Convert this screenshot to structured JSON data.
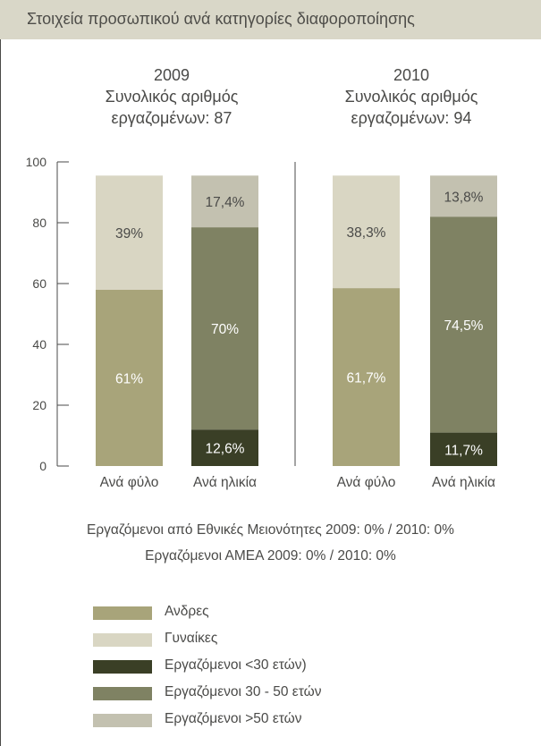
{
  "header": {
    "title": "Στοιχεία προσωπικού ανά κατηγορίες διαφοροποίησης"
  },
  "colors": {
    "men": "#a8a47a",
    "women": "#d9d6c3",
    "under30": "#3a3f26",
    "age30_50": "#7f8263",
    "over50": "#c3c1b0"
  },
  "panels": [
    {
      "year": "2009",
      "line2": "Συνολικός αριθμός",
      "line3": "εργαζομένων: 87"
    },
    {
      "year": "2010",
      "line2": "Συνολικός αριθμός",
      "line3": "εργαζομένων: 94"
    }
  ],
  "chart_data": {
    "type": "bar",
    "stacked": true,
    "ylim": [
      0,
      100
    ],
    "yticks": [
      0,
      20,
      40,
      60,
      80,
      100
    ],
    "groups": [
      {
        "year": "2009",
        "bars": [
          {
            "label": "Ανά φύλο",
            "segments": [
              {
                "series": "Ανδρες",
                "value": 58.0,
                "label": "61%"
              },
              {
                "series": "Γυναίκες",
                "value": 37.5,
                "label": "39%"
              }
            ]
          },
          {
            "label": "Ανά ηλικία",
            "segments": [
              {
                "series": "Εργαζόμενοι <30 ετών)",
                "value": 12.0,
                "label": "12,6%"
              },
              {
                "series": "Εργαζόμενοι 30 - 50 ετών",
                "value": 66.5,
                "label": "70%"
              },
              {
                "series": "Εργαζόμενοι >50 ετών",
                "value": 17.0,
                "label": "17,4%"
              }
            ]
          }
        ]
      },
      {
        "year": "2010",
        "bars": [
          {
            "label": "Ανά φύλο",
            "segments": [
              {
                "series": "Ανδρες",
                "value": 58.5,
                "label": "61,7%"
              },
              {
                "series": "Γυναίκες",
                "value": 37.0,
                "label": "38,3%"
              }
            ]
          },
          {
            "label": "Ανά ηλικία",
            "segments": [
              {
                "series": "Εργαζόμενοι <30 ετών)",
                "value": 11.0,
                "label": "11,7%"
              },
              {
                "series": "Εργαζόμενοι 30 - 50 ετών",
                "value": 71.0,
                "label": "74,5%"
              },
              {
                "series": "Εργαζόμενοι >50 ετών",
                "value": 13.5,
                "label": "13,8%"
              }
            ]
          }
        ]
      }
    ]
  },
  "notes": {
    "minorities": "Εργαζόμενοι από Εθνικές Μειονότητες 2009: 0% / 2010: 0%",
    "disabled": "Εργαζόμενοι ΑΜΕΑ 2009: 0% / 2010: 0%"
  },
  "legend": [
    {
      "label": "Ανδρες",
      "color": "#a8a47a"
    },
    {
      "label": "Γυναίκες",
      "color": "#d9d6c3"
    },
    {
      "label": "Εργαζόμενοι <30 ετών)",
      "color": "#3a3f26"
    },
    {
      "label": "Εργαζόμενοι 30 - 50 ετών",
      "color": "#7f8263"
    },
    {
      "label": "Εργαζόμενοι >50 ετών",
      "color": "#c3c1b0"
    }
  ]
}
